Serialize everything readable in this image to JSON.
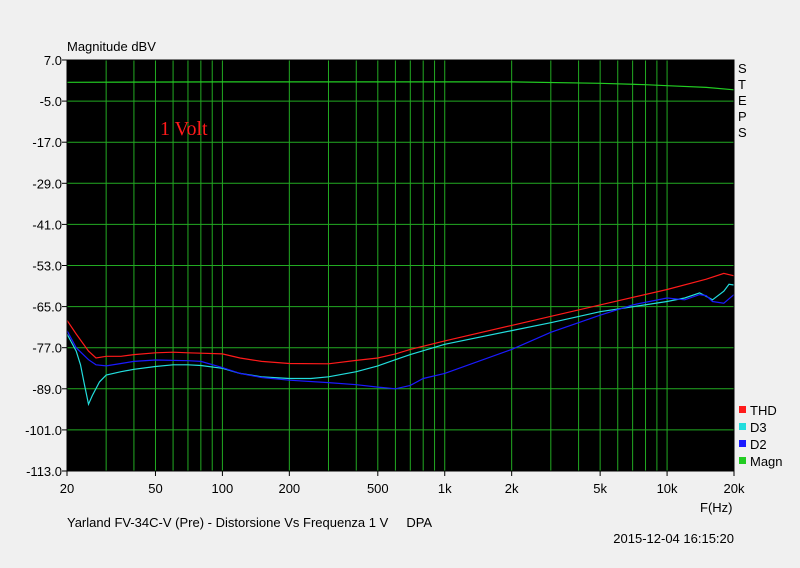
{
  "chart_data": {
    "type": "line",
    "title": "Yarland FV-34C-V (Pre) - Distorsione Vs Frequenza 1 V     DPA",
    "ylabel": "Magnitude dBV",
    "xlabel": "F(Hz)",
    "x_scale": "log",
    "xlim": [
      20,
      20000
    ],
    "ylim": [
      -113,
      7
    ],
    "x_tick_labels": [
      "20",
      "50",
      "100",
      "200",
      "500",
      "1k",
      "2k",
      "5k",
      "10k",
      "20k"
    ],
    "x_tick_values": [
      20,
      50,
      100,
      200,
      500,
      1000,
      2000,
      5000,
      10000,
      20000
    ],
    "y_tick_labels": [
      "7.0",
      "-5.0",
      "-17.0",
      "-29.0",
      "-41.0",
      "-53.0",
      "-65.0",
      "-77.0",
      "-89.0",
      "-101.0",
      "-113.0"
    ],
    "y_tick_values": [
      7,
      -5,
      -17,
      -29,
      -41,
      -53,
      -65,
      -77,
      -89,
      -101,
      -113
    ],
    "grid": true,
    "side_label": "STEPS",
    "annotation": "1 Volt",
    "timestamp": "2015-12-04 16:15:20",
    "legend_position": "bottom-right",
    "series": [
      {
        "name": "THD",
        "color": "#ff1a1a",
        "points": [
          [
            20,
            -69
          ],
          [
            22,
            -73
          ],
          [
            25,
            -78
          ],
          [
            27,
            -80
          ],
          [
            30,
            -79.5
          ],
          [
            35,
            -79.5
          ],
          [
            40,
            -79
          ],
          [
            50,
            -78.5
          ],
          [
            60,
            -78.3
          ],
          [
            70,
            -78.5
          ],
          [
            80,
            -78.6
          ],
          [
            100,
            -78.8
          ],
          [
            120,
            -80
          ],
          [
            150,
            -81
          ],
          [
            200,
            -81.6
          ],
          [
            300,
            -81.7
          ],
          [
            400,
            -80.7
          ],
          [
            500,
            -80
          ],
          [
            600,
            -78.8
          ],
          [
            700,
            -77.5
          ],
          [
            1000,
            -75
          ],
          [
            2000,
            -70.5
          ],
          [
            5000,
            -64.5
          ],
          [
            10000,
            -60
          ],
          [
            15000,
            -57
          ],
          [
            18000,
            -55.3
          ],
          [
            20000,
            -56
          ]
        ]
      },
      {
        "name": "D3",
        "color": "#22dddd",
        "points": [
          [
            20,
            -73
          ],
          [
            22,
            -78
          ],
          [
            23,
            -82
          ],
          [
            24,
            -88
          ],
          [
            25,
            -93.5
          ],
          [
            26,
            -91
          ],
          [
            28,
            -87
          ],
          [
            30,
            -85
          ],
          [
            35,
            -84
          ],
          [
            40,
            -83.3
          ],
          [
            50,
            -82.5
          ],
          [
            60,
            -82
          ],
          [
            70,
            -82
          ],
          [
            80,
            -82.2
          ],
          [
            100,
            -83
          ],
          [
            120,
            -84.5
          ],
          [
            150,
            -85.5
          ],
          [
            200,
            -86
          ],
          [
            250,
            -86
          ],
          [
            300,
            -85.5
          ],
          [
            400,
            -84
          ],
          [
            500,
            -82.3
          ],
          [
            600,
            -80.5
          ],
          [
            700,
            -79
          ],
          [
            1000,
            -76
          ],
          [
            2000,
            -72
          ],
          [
            3000,
            -69.7
          ],
          [
            5000,
            -66.5
          ],
          [
            10000,
            -63.5
          ],
          [
            12000,
            -62.5
          ],
          [
            14000,
            -61
          ],
          [
            15000,
            -62
          ],
          [
            16000,
            -63
          ],
          [
            18000,
            -60.5
          ],
          [
            19000,
            -58.5
          ],
          [
            20000,
            -58.7
          ]
        ]
      },
      {
        "name": "D2",
        "color": "#1a1aff",
        "points": [
          [
            20,
            -72
          ],
          [
            22,
            -77
          ],
          [
            25,
            -80.5
          ],
          [
            27,
            -82
          ],
          [
            30,
            -82.3
          ],
          [
            35,
            -81.6
          ],
          [
            40,
            -81
          ],
          [
            50,
            -80.6
          ],
          [
            70,
            -80.8
          ],
          [
            80,
            -81
          ],
          [
            100,
            -82.8
          ],
          [
            120,
            -84.5
          ],
          [
            150,
            -85.7
          ],
          [
            200,
            -86.5
          ],
          [
            300,
            -87.2
          ],
          [
            400,
            -87.8
          ],
          [
            500,
            -88.5
          ],
          [
            600,
            -89
          ],
          [
            700,
            -88
          ],
          [
            800,
            -86
          ],
          [
            1000,
            -84.5
          ],
          [
            2000,
            -77.5
          ],
          [
            3000,
            -72.5
          ],
          [
            5000,
            -67.5
          ],
          [
            7000,
            -64.5
          ],
          [
            10000,
            -62.5
          ],
          [
            12000,
            -63
          ],
          [
            14000,
            -61.5
          ],
          [
            15000,
            -61.8
          ],
          [
            16000,
            -63.5
          ],
          [
            18000,
            -64
          ],
          [
            20000,
            -61.5
          ]
        ]
      },
      {
        "name": "Magn",
        "color": "#22cc22",
        "points": [
          [
            20,
            0.5
          ],
          [
            100,
            0.6
          ],
          [
            500,
            0.6
          ],
          [
            1000,
            0.6
          ],
          [
            2000,
            0.6
          ],
          [
            5000,
            0.2
          ],
          [
            8000,
            -0.2
          ],
          [
            10000,
            -0.5
          ],
          [
            15000,
            -1.0
          ],
          [
            20000,
            -1.7
          ]
        ]
      }
    ]
  }
}
